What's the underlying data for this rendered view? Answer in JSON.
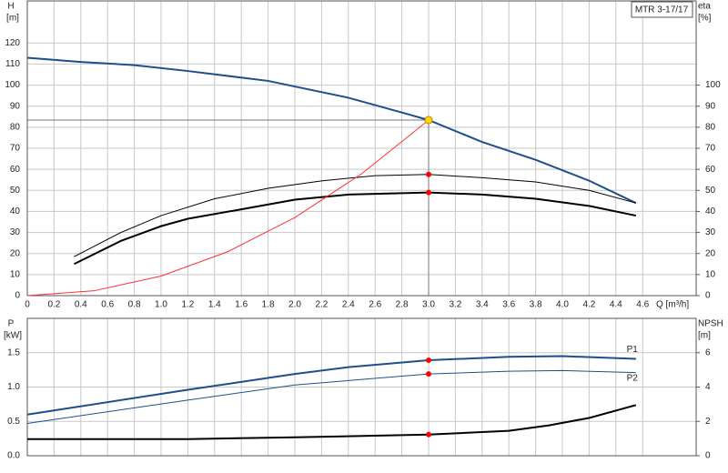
{
  "chart_data": [
    {
      "type": "line",
      "title": "MTR 3-17/17",
      "y_label": "H",
      "y_unit": "[m]",
      "y2_label": "eta",
      "y2_unit": "[%]",
      "x_label": "Q [m³/h]",
      "xlim": [
        0,
        5
      ],
      "xtick_labels": true,
      "xticks": [
        0,
        0.2,
        0.4,
        0.6,
        0.8,
        {
          "value": 1,
          "label": "1.0"
        },
        1.2,
        1.4,
        1.6,
        1.8,
        {
          "value": 2,
          "label": "2.0"
        },
        2.2,
        2.4,
        2.6,
        2.8,
        {
          "value": 3,
          "label": "3.0"
        },
        3.2,
        3.4,
        3.6,
        3.8,
        {
          "value": 4,
          "label": "4.0"
        },
        4.2,
        4.4,
        4.6
      ],
      "ylim": [
        0,
        140
      ],
      "yticks": [
        0,
        10,
        20,
        30,
        40,
        50,
        60,
        70,
        80,
        90,
        100,
        110,
        120
      ],
      "y2lim": [
        0,
        140
      ],
      "y2ticks": [
        0,
        10,
        20,
        30,
        40,
        50,
        60,
        70,
        80,
        90,
        100
      ],
      "grid": true,
      "series": [
        {
          "color": "#1f4e8c",
          "width": 2,
          "x": [
            0,
            0.4,
            0.8,
            1.2,
            1.8,
            2.1,
            2.4,
            2.8,
            3.0,
            3.4,
            3.8,
            4.2,
            4.55
          ],
          "values": [
            113,
            111,
            109.5,
            106.7,
            102,
            98,
            94,
            87,
            83.4,
            73,
            64.5,
            54.6,
            44
          ]
        },
        {
          "color": "#000000",
          "width": 1,
          "x": [
            0.35,
            0.7,
            1.0,
            1.4,
            1.8,
            2.2,
            2.6,
            3.0,
            3.4,
            3.8,
            4.2,
            4.55
          ],
          "values": [
            18.5,
            30,
            38,
            46,
            51,
            54.5,
            57,
            57.6,
            56,
            54,
            50,
            44
          ],
          "axis": "y2"
        },
        {
          "color": "#000000",
          "width": 2,
          "x": [
            0.35,
            0.7,
            1.0,
            1.2,
            1.6,
            2.0,
            2.4,
            3.0,
            3.4,
            3.8,
            4.2,
            4.55
          ],
          "values": [
            15,
            26,
            33,
            36.5,
            41,
            45.6,
            48,
            49,
            48,
            46,
            42.6,
            38
          ],
          "axis": "y2"
        },
        {
          "color": "#ff3030",
          "width": 1,
          "x": [
            0,
            0.5,
            1.0,
            1.5,
            2.0,
            2.5,
            3.0
          ],
          "values": [
            0,
            2.3,
            9.3,
            20.9,
            37.1,
            57.9,
            83.4
          ]
        }
      ],
      "markers": [
        {
          "x": 3.0,
          "y": 83.4,
          "color": "#ffd700",
          "crosshair": true
        },
        {
          "x": 3.0,
          "y": 57.6,
          "color": "#ff0000",
          "axis": "y2"
        },
        {
          "x": 3.0,
          "y": 49,
          "color": "#ff0000",
          "axis": "y2"
        }
      ]
    },
    {
      "type": "line",
      "y_label": "P",
      "y_unit": "[kW]",
      "y2_label": "NPSH",
      "y2_unit": "[m]",
      "xlim": [
        0,
        5
      ],
      "xtick_labels": false,
      "xticks": [
        0,
        0.2,
        0.4,
        0.6,
        0.8,
        1,
        1.2,
        1.4,
        1.6,
        1.8,
        2,
        2.2,
        2.4,
        2.6,
        2.8,
        3,
        3.2,
        3.4,
        3.6,
        3.8,
        4,
        4.2,
        4.4,
        4.6
      ],
      "ylim": [
        0,
        2
      ],
      "yticks": [
        {
          "value": 0,
          "label": "0.0"
        },
        0.5,
        {
          "value": 1,
          "label": "1.0"
        },
        1.5
      ],
      "y2lim": [
        0,
        8
      ],
      "y2ticks": [
        0,
        2,
        4,
        6
      ],
      "grid": true,
      "series": [
        {
          "name": "P1",
          "color": "#1f4e8c",
          "width": 2,
          "x": [
            0,
            1.2,
            2.0,
            2.4,
            3.0,
            3.6,
            4.0,
            4.55
          ],
          "values": [
            0.6,
            0.96,
            1.19,
            1.29,
            1.39,
            1.44,
            1.45,
            1.41
          ]
        },
        {
          "name": "P2",
          "color": "#1f4e8c",
          "width": 1,
          "x": [
            0,
            1.2,
            2.0,
            3.0,
            3.6,
            4.0,
            4.55
          ],
          "values": [
            0.47,
            0.81,
            1.03,
            1.19,
            1.23,
            1.24,
            1.21
          ]
        },
        {
          "color": "#000000",
          "width": 2,
          "x": [
            0,
            1.2,
            2.0,
            3.0,
            3.6,
            3.9,
            4.2,
            4.55
          ],
          "values": [
            0.97,
            0.97,
            1.07,
            1.23,
            1.45,
            1.77,
            2.2,
            2.95
          ],
          "axis": "y2"
        }
      ],
      "markers": [
        {
          "x": 3.0,
          "y": 1.39,
          "color": "#ff0000"
        },
        {
          "x": 3.0,
          "y": 1.19,
          "color": "#ff0000"
        },
        {
          "x": 3.0,
          "y": 1.23,
          "color": "#ff0000",
          "axis": "y2"
        }
      ]
    }
  ]
}
